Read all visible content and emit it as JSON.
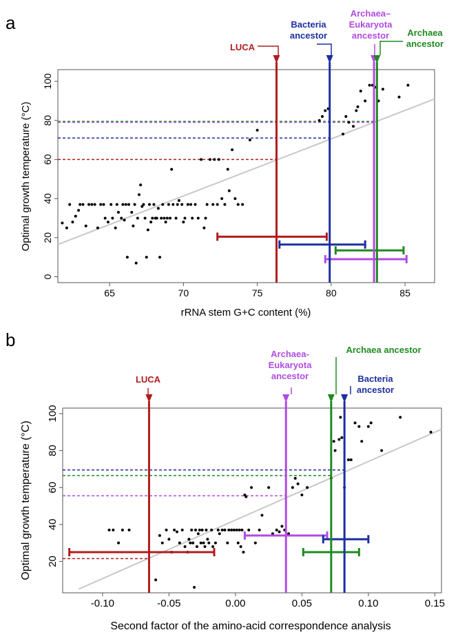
{
  "chart_data": [
    {
      "panel": "a",
      "type": "scatter",
      "xlabel": "rRNA stem G+C content (%)",
      "ylabel": "Optimal growth temperature (°C)",
      "xlim": [
        61.5,
        87
      ],
      "ylim": [
        -3,
        106
      ],
      "xticks": [
        65,
        70,
        75,
        80,
        85
      ],
      "yticks": [
        0,
        20,
        40,
        60,
        80,
        100
      ],
      "regression": {
        "x1": 61.5,
        "y1": 16.5,
        "x2": 87,
        "y2": 91
      },
      "points": [
        [
          61.8,
          27.5
        ],
        [
          62.1,
          25
        ],
        [
          62.3,
          37
        ],
        [
          62.5,
          28
        ],
        [
          62.7,
          31
        ],
        [
          62.9,
          34
        ],
        [
          63.0,
          37
        ],
        [
          63.2,
          37
        ],
        [
          63.4,
          26
        ],
        [
          63.6,
          37
        ],
        [
          63.8,
          37
        ],
        [
          64.0,
          37
        ],
        [
          64.2,
          25
        ],
        [
          64.4,
          37
        ],
        [
          64.6,
          37
        ],
        [
          64.7,
          30
        ],
        [
          64.9,
          28
        ],
        [
          65.1,
          37
        ],
        [
          65.2,
          30
        ],
        [
          65.4,
          25
        ],
        [
          65.5,
          37
        ],
        [
          65.6,
          33
        ],
        [
          65.8,
          30
        ],
        [
          65.9,
          37
        ],
        [
          66.0,
          29
        ],
        [
          66.1,
          37
        ],
        [
          66.2,
          10
        ],
        [
          66.3,
          37
        ],
        [
          66.5,
          33
        ],
        [
          66.6,
          26
        ],
        [
          66.7,
          37
        ],
        [
          66.8,
          7
        ],
        [
          66.9,
          30
        ],
        [
          67.0,
          42
        ],
        [
          67.1,
          47
        ],
        [
          67.2,
          36
        ],
        [
          67.3,
          37
        ],
        [
          67.4,
          30
        ],
        [
          67.5,
          10
        ],
        [
          67.6,
          24
        ],
        [
          67.7,
          37
        ],
        [
          67.8,
          28
        ],
        [
          67.9,
          30
        ],
        [
          68.0,
          37
        ],
        [
          68.1,
          30
        ],
        [
          68.2,
          30
        ],
        [
          68.3,
          35
        ],
        [
          68.4,
          10
        ],
        [
          68.5,
          30
        ],
        [
          68.6,
          37
        ],
        [
          68.7,
          30
        ],
        [
          68.8,
          28
        ],
        [
          68.9,
          30
        ],
        [
          69.0,
          37
        ],
        [
          69.1,
          30
        ],
        [
          69.2,
          55
        ],
        [
          69.3,
          37
        ],
        [
          69.5,
          30
        ],
        [
          69.6,
          37
        ],
        [
          69.7,
          39
        ],
        [
          69.9,
          37
        ],
        [
          70.0,
          28
        ],
        [
          70.1,
          30
        ],
        [
          70.3,
          37
        ],
        [
          70.5,
          37
        ],
        [
          70.6,
          30
        ],
        [
          70.8,
          37
        ],
        [
          71.0,
          30
        ],
        [
          71.2,
          60
        ],
        [
          71.4,
          25
        ],
        [
          71.5,
          30
        ],
        [
          71.6,
          37
        ],
        [
          71.8,
          60
        ],
        [
          72.0,
          37
        ],
        [
          72.1,
          60
        ],
        [
          72.3,
          37
        ],
        [
          72.4,
          60
        ],
        [
          72.6,
          40
        ],
        [
          72.8,
          37
        ],
        [
          73.0,
          55
        ],
        [
          73.1,
          44
        ],
        [
          73.3,
          65
        ],
        [
          73.5,
          40
        ],
        [
          73.7,
          37
        ],
        [
          74.0,
          37
        ],
        [
          74.5,
          70
        ],
        [
          75.0,
          75
        ],
        [
          79.2,
          80
        ],
        [
          79.4,
          82
        ],
        [
          79.6,
          85
        ],
        [
          79.8,
          86
        ],
        [
          80.8,
          73
        ],
        [
          81.0,
          82
        ],
        [
          81.2,
          79
        ],
        [
          81.5,
          77
        ],
        [
          81.7,
          85
        ],
        [
          81.8,
          87
        ],
        [
          82.0,
          95
        ],
        [
          82.3,
          90
        ],
        [
          82.6,
          98
        ],
        [
          82.8,
          98
        ],
        [
          83.0,
          97
        ],
        [
          83.2,
          90
        ],
        [
          83.5,
          96
        ],
        [
          84.6,
          92
        ],
        [
          85.2,
          98
        ]
      ],
      "hlines": [
        {
          "y": 79.5,
          "color": "#1f8a1f"
        },
        {
          "y": 79,
          "color": "#b04be0"
        },
        {
          "y": 71,
          "color": "#1c2ea0"
        },
        {
          "y": 60,
          "color": "#b01c1c"
        }
      ],
      "ancestors": [
        {
          "name": "LUCA",
          "x": 76.3,
          "ci": [
            72.3,
            79.7
          ],
          "ci_y": 20.5,
          "color": "#b01c1c"
        },
        {
          "name": "Bacteria ancestor",
          "x": 79.9,
          "ci": [
            76.5,
            82.3
          ],
          "ci_y": 16.5,
          "color": "#1c2ea0"
        },
        {
          "name": "Archaea–Eukaryota ancestor",
          "x": 82.9,
          "ci": [
            79.6,
            85.1
          ],
          "ci_y": 9,
          "color": "#b04be0"
        },
        {
          "name": "Archaea ancestor",
          "x": 83.1,
          "ci": [
            80.3,
            84.9
          ],
          "ci_y": 13.5,
          "color": "#1f8a1f"
        }
      ]
    },
    {
      "panel": "b",
      "type": "scatter",
      "xlabel": "Second factor of the amino-acid correspondence analysis",
      "ylabel": "Optimal growth temperature (°C)",
      "xlim": [
        -0.13,
        0.155
      ],
      "ylim": [
        3,
        103
      ],
      "xticks": [
        -0.1,
        -0.05,
        0.0,
        0.05,
        0.1,
        0.15
      ],
      "yticks": [
        20,
        40,
        60,
        80,
        100
      ],
      "regression": {
        "x1": -0.118,
        "y1": 5,
        "x2": 0.155,
        "y2": 91.5
      },
      "points": [
        [
          -0.095,
          37
        ],
        [
          -0.092,
          37
        ],
        [
          -0.088,
          30
        ],
        [
          -0.085,
          37
        ],
        [
          -0.08,
          37
        ],
        [
          -0.06,
          10
        ],
        [
          -0.057,
          34
        ],
        [
          -0.055,
          30
        ],
        [
          -0.052,
          37
        ],
        [
          -0.05,
          32
        ],
        [
          -0.048,
          25
        ],
        [
          -0.046,
          37
        ],
        [
          -0.044,
          36
        ],
        [
          -0.042,
          30
        ],
        [
          -0.04,
          37
        ],
        [
          -0.038,
          28
        ],
        [
          -0.036,
          25
        ],
        [
          -0.035,
          32
        ],
        [
          -0.034,
          30
        ],
        [
          -0.033,
          37
        ],
        [
          -0.032,
          30
        ],
        [
          -0.031,
          6
        ],
        [
          -0.03,
          37
        ],
        [
          -0.029,
          28
        ],
        [
          -0.028,
          35
        ],
        [
          -0.027,
          37
        ],
        [
          -0.026,
          30
        ],
        [
          -0.025,
          37
        ],
        [
          -0.024,
          30
        ],
        [
          -0.023,
          28
        ],
        [
          -0.022,
          37
        ],
        [
          -0.021,
          32
        ],
        [
          -0.02,
          30
        ],
        [
          -0.018,
          37
        ],
        [
          -0.017,
          28
        ],
        [
          -0.015,
          30
        ],
        [
          -0.013,
          37
        ],
        [
          -0.012,
          35
        ],
        [
          -0.01,
          37
        ],
        [
          -0.008,
          37
        ],
        [
          -0.006,
          30
        ],
        [
          -0.005,
          37
        ],
        [
          -0.003,
          37
        ],
        [
          -0.001,
          37
        ],
        [
          0.001,
          37
        ],
        [
          0.002,
          30
        ],
        [
          0.003,
          37
        ],
        [
          0.004,
          28
        ],
        [
          0.005,
          37
        ],
        [
          0.006,
          25
        ],
        [
          0.007,
          56
        ],
        [
          0.008,
          55
        ],
        [
          0.01,
          37
        ],
        [
          0.012,
          60
        ],
        [
          0.015,
          30
        ],
        [
          0.018,
          37
        ],
        [
          0.02,
          45
        ],
        [
          0.025,
          60
        ],
        [
          0.028,
          35
        ],
        [
          0.031,
          37
        ],
        [
          0.033,
          36
        ],
        [
          0.035,
          39
        ],
        [
          0.037,
          37
        ],
        [
          0.04,
          35
        ],
        [
          0.043,
          60
        ],
        [
          0.045,
          65
        ],
        [
          0.047,
          62
        ],
        [
          0.05,
          56
        ],
        [
          0.054,
          60
        ],
        [
          0.072,
          65
        ],
        [
          0.074,
          85
        ],
        [
          0.075,
          80
        ],
        [
          0.078,
          86
        ],
        [
          0.079,
          98
        ],
        [
          0.08,
          87
        ],
        [
          0.082,
          60
        ],
        [
          0.085,
          75
        ],
        [
          0.087,
          75
        ],
        [
          0.09,
          95
        ],
        [
          0.093,
          93
        ],
        [
          0.095,
          85
        ],
        [
          0.1,
          93
        ],
        [
          0.102,
          95
        ],
        [
          0.11,
          80
        ],
        [
          0.124,
          98
        ],
        [
          0.147,
          90
        ]
      ],
      "hlines": [
        {
          "y": 69.5,
          "color": "#1c2ea0"
        },
        {
          "y": 66.5,
          "color": "#1f8a1f"
        },
        {
          "y": 55.5,
          "color": "#b04be0"
        },
        {
          "y": 21.5,
          "color": "#b01c1c"
        }
      ],
      "ancestors": [
        {
          "name": "LUCA",
          "x": -0.065,
          "ci": [
            -0.125,
            -0.016
          ],
          "ci_y": 25,
          "color": "#b01c1c"
        },
        {
          "name": "Archaea-Eukaryota ancestor",
          "x": 0.038,
          "ci": [
            0.007,
            0.069
          ],
          "ci_y": 34,
          "color": "#b04be0"
        },
        {
          "name": "Archaea ancestor",
          "x": 0.072,
          "ci": [
            0.051,
            0.093
          ],
          "ci_y": 25,
          "color": "#1f8a1f"
        },
        {
          "name": "Bacteria ancestor",
          "x": 0.082,
          "ci": [
            0.066,
            0.1
          ],
          "ci_y": 32,
          "color": "#1c2ea0"
        }
      ]
    }
  ],
  "panels": {
    "a": {
      "letter": "a",
      "labels": {
        "luca": [
          "LUCA"
        ],
        "bacteria": [
          "Bacteria",
          "ancestor"
        ],
        "archeuk": [
          "Archaea–",
          "Eukaryota",
          "ancestor"
        ],
        "archaea": [
          "Archaea",
          "ancestor"
        ]
      }
    },
    "b": {
      "letter": "b",
      "labels": {
        "luca": [
          "LUCA"
        ],
        "archeuk": [
          "Archaea-",
          "Eukaryota",
          "ancestor"
        ],
        "archaea": [
          "Archaea ancestor"
        ],
        "bacteria": [
          "Bacteria",
          "ancestor"
        ]
      }
    }
  },
  "colors": {
    "regression": "#c8c8c8",
    "points": "#000000"
  }
}
